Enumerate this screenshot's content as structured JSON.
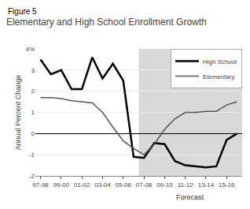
{
  "chart_data": {
    "type": "line",
    "title": "Elementary and High School Enrollment Growth",
    "ylabel": "Annual Percent Change",
    "annotations": [
      {
        "text": "Figure 5"
      },
      {
        "text": "Forecast",
        "x0": 9.5,
        "x1": 19.5,
        "color": "#d9d9d9"
      }
    ],
    "categories": [
      "97-98",
      null,
      "99-00",
      null,
      "01-02",
      null,
      "03-04",
      null,
      "05-06",
      null,
      "07-08",
      null,
      "09-10",
      null,
      "11-12",
      null,
      "13-14",
      null,
      "15-16",
      null
    ],
    "series": [
      {
        "name": "High School",
        "color": "#000000",
        "values": [
          3.5,
          2.8,
          3.0,
          2.1,
          2.1,
          3.6,
          2.6,
          3.3,
          2.5,
          -1.1,
          -1.15,
          -0.45,
          -0.5,
          -1.3,
          -1.5,
          -1.55,
          -1.6,
          -1.55,
          -0.3,
          0.0
        ]
      },
      {
        "name": "Elementary",
        "color": "#555555",
        "values": [
          1.7,
          1.7,
          1.65,
          1.55,
          1.5,
          1.45,
          1.0,
          0.3,
          -0.35,
          -0.7,
          -1.0,
          -0.5,
          0.2,
          0.7,
          1.0,
          1.0,
          1.05,
          1.05,
          1.35,
          1.5
        ]
      }
    ],
    "ylim": [
      -2,
      4
    ],
    "yticks": [
      -2,
      -1,
      0,
      1,
      2,
      3,
      {
        "value": 4,
        "label": "4%"
      }
    ],
    "grid": true,
    "legend": "upper right"
  }
}
